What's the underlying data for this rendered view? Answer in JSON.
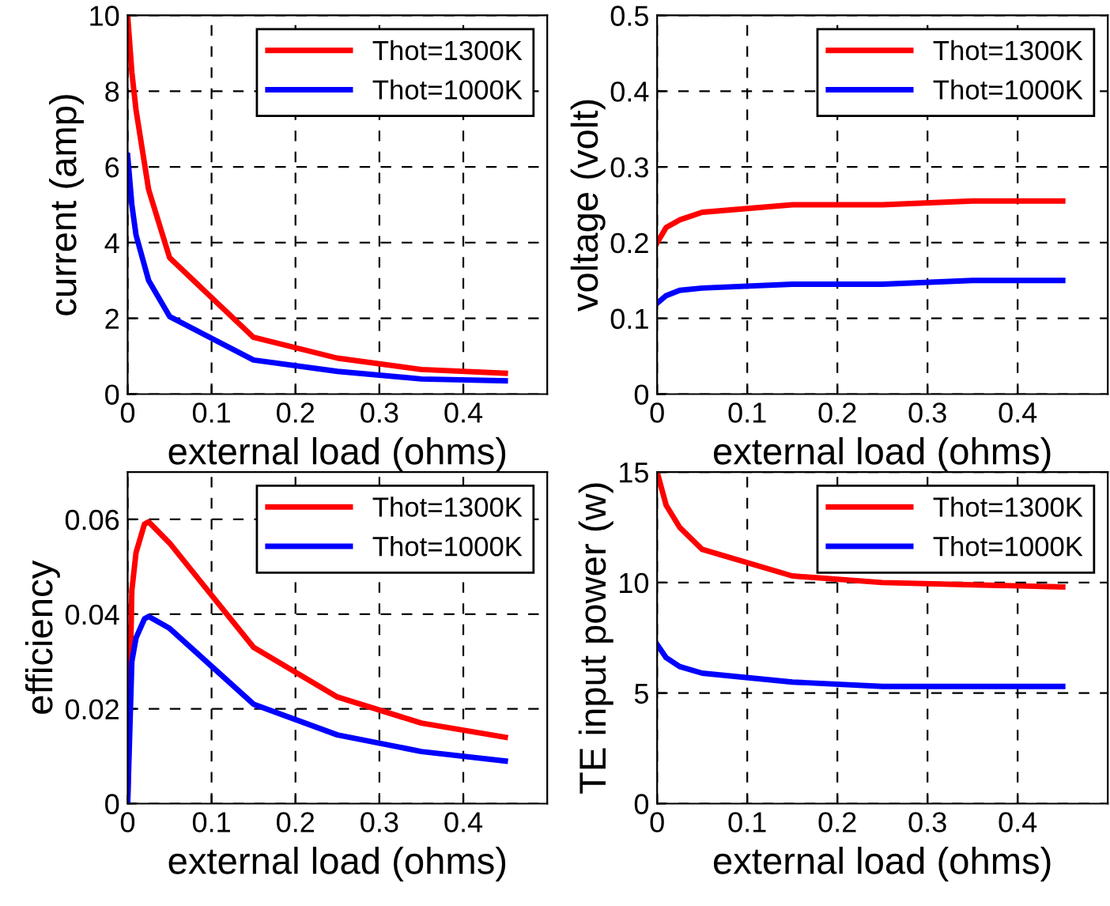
{
  "chart_data": [
    {
      "type": "line",
      "xlabel": "external load (ohms)",
      "ylabel": "current (amp)",
      "xlim": [
        0,
        0.5
      ],
      "xticks": [
        0,
        0.1,
        0.2,
        0.3,
        0.4
      ],
      "ylim": [
        0,
        10
      ],
      "yticks": [
        0,
        2,
        4,
        6,
        8,
        10
      ],
      "grid": true,
      "legend": "top right",
      "line_style": "solid",
      "x": [
        0,
        0.005,
        0.01,
        0.025,
        0.05,
        0.15,
        0.25,
        0.35,
        0.45
      ],
      "series": [
        {
          "name": "Thot=1300K",
          "color": "#ff0000",
          "values": [
            10,
            8.5,
            7.5,
            5.4,
            3.6,
            1.5,
            0.95,
            0.65,
            0.55
          ]
        },
        {
          "name": "Thot=1000K",
          "color": "#0000ff",
          "values": [
            6.3,
            5,
            4.2,
            3.0,
            2.05,
            0.9,
            0.6,
            0.4,
            0.35
          ]
        }
      ]
    },
    {
      "type": "line",
      "xlabel": "external load (ohms)",
      "ylabel": "voltage (volt)",
      "xlim": [
        0,
        0.5
      ],
      "xticks": [
        0,
        0.1,
        0.2,
        0.3,
        0.4
      ],
      "ylim": [
        0,
        0.5
      ],
      "yticks": [
        0,
        0.1,
        0.2,
        0.3,
        0.4,
        0.5
      ],
      "grid": true,
      "legend": "top right",
      "line_style": "solid",
      "x": [
        0,
        0.01,
        0.025,
        0.05,
        0.15,
        0.25,
        0.35,
        0.45
      ],
      "series": [
        {
          "name": "Thot=1300K",
          "color": "#ff0000",
          "values": [
            0.2,
            0.22,
            0.23,
            0.24,
            0.25,
            0.25,
            0.255,
            0.255
          ]
        },
        {
          "name": "Thot=1000K",
          "color": "#0000ff",
          "values": [
            0.12,
            0.13,
            0.137,
            0.14,
            0.145,
            0.145,
            0.15,
            0.15
          ]
        }
      ]
    },
    {
      "type": "line",
      "xlabel": "external load (ohms)",
      "ylabel": "efficiency",
      "xlim": [
        0,
        0.5
      ],
      "xticks": [
        0,
        0.1,
        0.2,
        0.3,
        0.4
      ],
      "ylim": [
        0,
        0.07
      ],
      "yticks": [
        0,
        0.02,
        0.04,
        0.06
      ],
      "grid": true,
      "legend": "top right",
      "line_style": "solid",
      "x": [
        0,
        0.005,
        0.01,
        0.02,
        0.025,
        0.05,
        0.15,
        0.25,
        0.35,
        0.45
      ],
      "series": [
        {
          "name": "Thot=1300K",
          "color": "#ff0000",
          "values": [
            0,
            0.045,
            0.053,
            0.059,
            0.0595,
            0.055,
            0.033,
            0.0225,
            0.017,
            0.014
          ]
        },
        {
          "name": "Thot=1000K",
          "color": "#0000ff",
          "values": [
            0,
            0.03,
            0.035,
            0.039,
            0.0395,
            0.037,
            0.021,
            0.0145,
            0.011,
            0.009
          ]
        }
      ]
    },
    {
      "type": "line",
      "xlabel": "external load (ohms)",
      "ylabel": "TE input power (w)",
      "xlim": [
        0,
        0.5
      ],
      "xticks": [
        0,
        0.1,
        0.2,
        0.3,
        0.4
      ],
      "ylim": [
        0,
        15
      ],
      "yticks": [
        0,
        5,
        10,
        15
      ],
      "grid": true,
      "legend": "top right",
      "line_style": "solid",
      "x": [
        0,
        0.01,
        0.025,
        0.05,
        0.15,
        0.25,
        0.35,
        0.45
      ],
      "series": [
        {
          "name": "Thot=1300K",
          "color": "#ff0000",
          "values": [
            15,
            13.5,
            12.5,
            11.5,
            10.3,
            10.0,
            9.9,
            9.8
          ]
        },
        {
          "name": "Thot=1000K",
          "color": "#0000ff",
          "values": [
            7.2,
            6.6,
            6.2,
            5.9,
            5.5,
            5.3,
            5.3,
            5.3
          ]
        }
      ]
    }
  ]
}
